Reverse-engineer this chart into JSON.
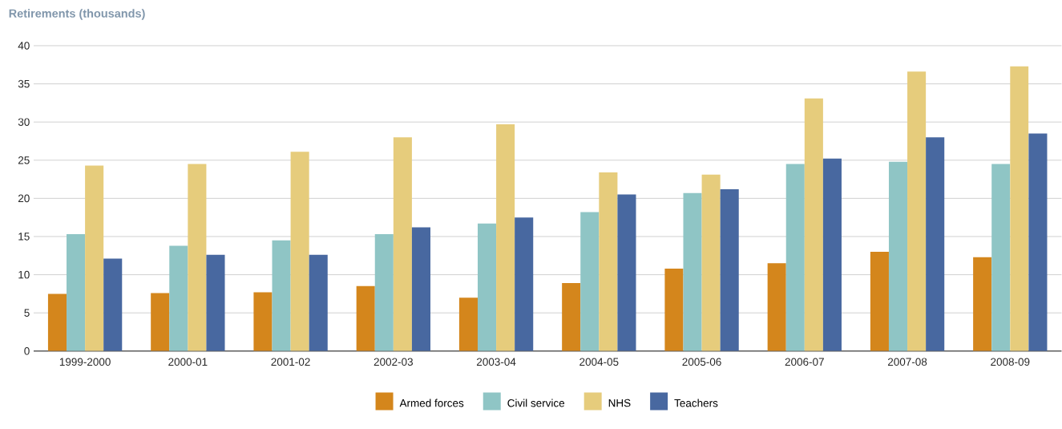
{
  "chart_data": {
    "type": "bar",
    "title": "Retirements (thousands)",
    "categories": [
      "1999-2000",
      "2000-01",
      "2001-02",
      "2002-03",
      "2003-04",
      "2004-05",
      "2005-06",
      "2006-07",
      "2007-08",
      "2008-09"
    ],
    "series": [
      {
        "name": "Armed forces",
        "color": "#d4861c",
        "values": [
          7.5,
          7.6,
          7.7,
          8.5,
          7.0,
          8.9,
          10.8,
          11.5,
          13.0,
          12.3
        ]
      },
      {
        "name": "Civil service",
        "color": "#8fc5c5",
        "values": [
          15.3,
          13.8,
          14.5,
          15.3,
          16.7,
          18.2,
          20.7,
          24.5,
          24.8,
          24.5
        ]
      },
      {
        "name": "NHS",
        "color": "#e6cc7c",
        "values": [
          24.3,
          24.5,
          26.1,
          28.0,
          29.7,
          23.4,
          23.1,
          33.1,
          36.6,
          37.3
        ]
      },
      {
        "name": "Teachers",
        "color": "#4868a0",
        "values": [
          12.1,
          12.6,
          12.6,
          16.2,
          17.5,
          20.5,
          21.2,
          25.2,
          28.0,
          28.5
        ]
      }
    ],
    "ylim": [
      0,
      40
    ],
    "yticks": [
      0,
      5,
      10,
      15,
      20,
      25,
      30,
      35,
      40
    ],
    "grid": "y",
    "legend": "bottom"
  }
}
